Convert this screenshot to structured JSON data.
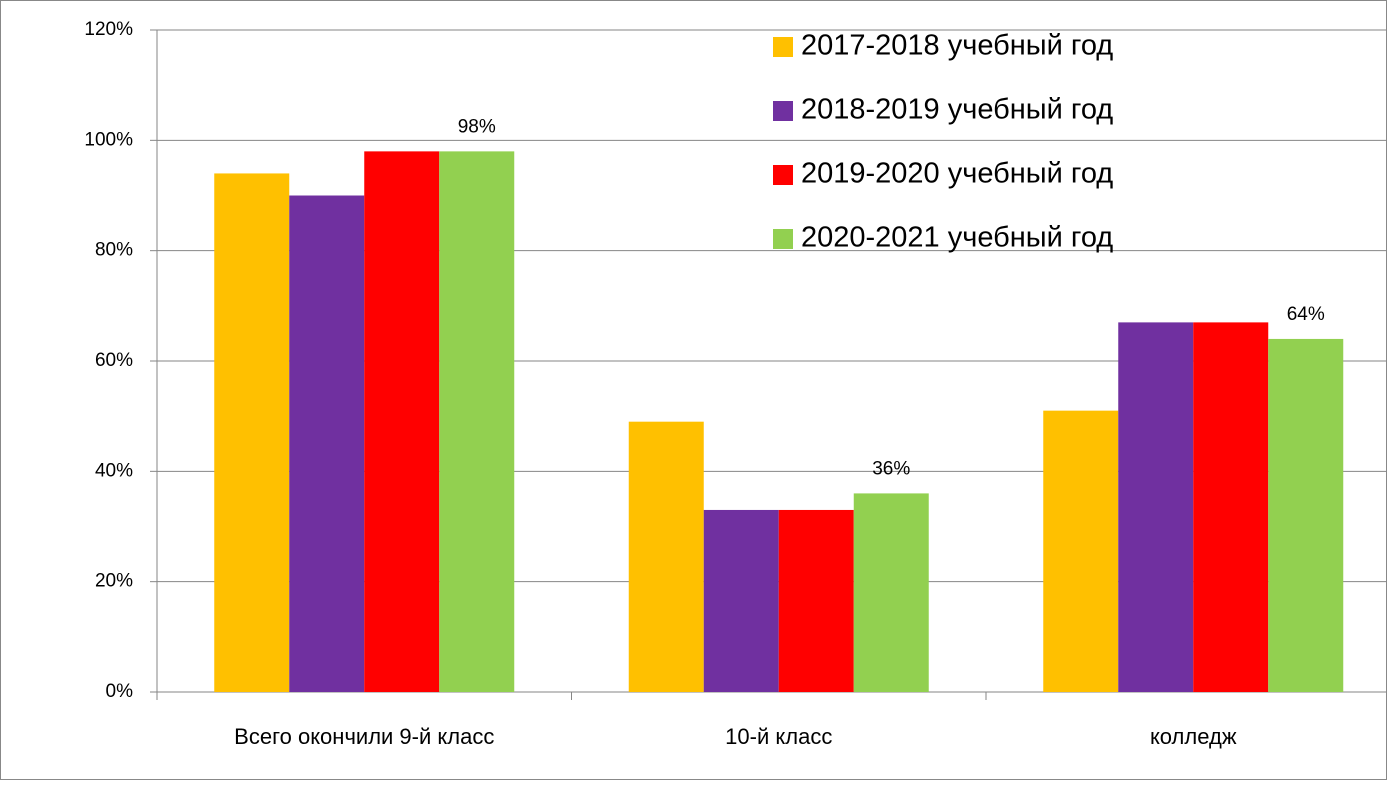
{
  "chart_data": {
    "type": "bar",
    "categories": [
      "Всего окончили 9-й класс",
      "10-й класс",
      "колледж"
    ],
    "series": [
      {
        "name": "2017-2018 учебный год",
        "color": "#ffc000",
        "values": [
          94,
          49,
          51
        ]
      },
      {
        "name": "2018-2019 учебный год",
        "color": "#7030a0",
        "values": [
          90,
          33,
          67
        ]
      },
      {
        "name": "2019-2020 учебный год",
        "color": "#ff0000",
        "values": [
          98,
          33,
          67
        ]
      },
      {
        "name": "2020-2021 учебный год",
        "color": "#92d050",
        "values": [
          98,
          36,
          64
        ],
        "value_labels": [
          "98%",
          "36%",
          "64%"
        ]
      }
    ],
    "ylim": [
      0,
      120
    ],
    "yticks": [
      {
        "value": 0,
        "label": "0%"
      },
      {
        "value": 20,
        "label": "20%"
      },
      {
        "value": 40,
        "label": "40%"
      },
      {
        "value": 60,
        "label": "60%"
      },
      {
        "value": 80,
        "label": "80%"
      },
      {
        "value": 100,
        "label": "100%"
      },
      {
        "value": 120,
        "label": "120%"
      }
    ],
    "grid": true,
    "legend": "top-right"
  }
}
